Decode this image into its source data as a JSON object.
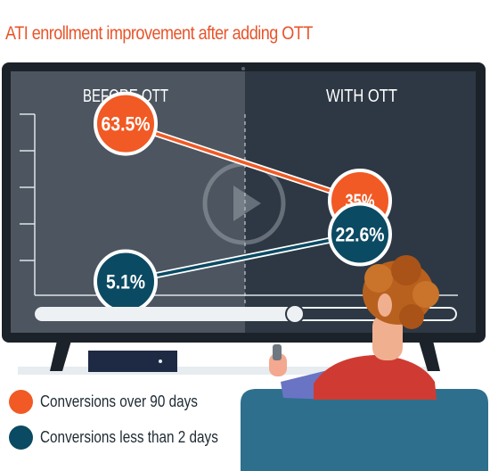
{
  "title": "ATI enrollment improvement after adding OTT",
  "colors": {
    "title": "#e8542a",
    "series_orange": "#f15a24",
    "series_teal": "#0b4a63",
    "screen_left": "#4c5560",
    "screen_right": "#2d3844",
    "tv_frame": "#1c2229"
  },
  "chart_data": {
    "type": "line",
    "categories": [
      "BEFORE OTT",
      "WITH OTT"
    ],
    "series": [
      {
        "name": "Conversions over 90 days",
        "values": [
          63.5,
          35
        ],
        "labels": [
          "63.5%",
          "35%"
        ],
        "color": "#f15a24"
      },
      {
        "name": "Conversions less than 2 days",
        "values": [
          5.1,
          22.6
        ],
        "labels": [
          "5.1%",
          "22.6%"
        ],
        "color": "#0b4a63"
      }
    ],
    "ylim": [
      0,
      80
    ],
    "grid": false,
    "legend": "bottom-left",
    "title": "ATI enrollment improvement after adding OTT",
    "xlabel": "",
    "ylabel": ""
  },
  "legend": [
    {
      "label": "Conversions over 90 days",
      "color": "#f15a24"
    },
    {
      "label": "Conversions less than 2 days",
      "color": "#0b4a63"
    }
  ]
}
